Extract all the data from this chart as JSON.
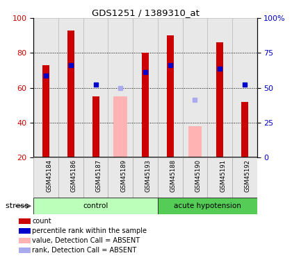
{
  "title": "GDS1251 / 1389310_at",
  "samples": [
    "GSM45184",
    "GSM45186",
    "GSM45187",
    "GSM45189",
    "GSM45193",
    "GSM45188",
    "GSM45190",
    "GSM45191",
    "GSM45192"
  ],
  "red_values": [
    73,
    93,
    55,
    null,
    80,
    90,
    null,
    86,
    52
  ],
  "pink_values": [
    null,
    null,
    null,
    55,
    null,
    null,
    38,
    null,
    null
  ],
  "blue_values": [
    67,
    73,
    62,
    null,
    69,
    73,
    null,
    71,
    62
  ],
  "lightblue_values": [
    null,
    null,
    null,
    60,
    null,
    null,
    53,
    null,
    null
  ],
  "groups": [
    {
      "label": "control",
      "start": 0,
      "end": 5,
      "light_color": "#ccffcc",
      "dark_color": "#66cc66"
    },
    {
      "label": "acute hypotension",
      "start": 5,
      "end": 9,
      "light_color": "#ccffcc",
      "dark_color": "#44bb44"
    }
  ],
  "ylim": [
    20,
    100
  ],
  "yticks_left": [
    20,
    40,
    60,
    80,
    100
  ],
  "right_tick_positions": [
    20,
    40,
    60,
    80,
    100
  ],
  "right_tick_labels": [
    "0",
    "25",
    "50",
    "75",
    "100%"
  ],
  "ylabel_left_color": "#cc0000",
  "ylabel_right_color": "#0000cc",
  "red_color": "#cc0000",
  "pink_color": "#ffb3b3",
  "blue_color": "#0000cc",
  "lightblue_color": "#aaaaee",
  "bg_color": "#e8e8e8",
  "stress_label": "stress"
}
